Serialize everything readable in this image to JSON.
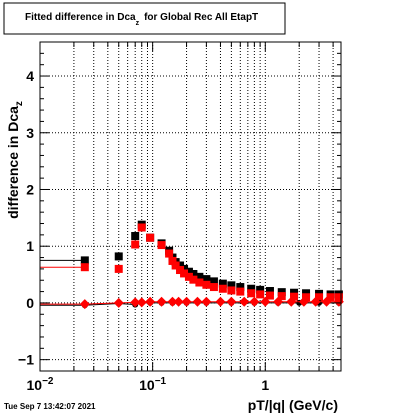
{
  "title": {
    "prefix": "Fitted difference in Dca",
    "subscript": "z",
    "suffix": "for Global Rec All EtapT"
  },
  "timestamp": "Tue Sep  7 13:42:07 2021",
  "colors": {
    "series_black": "#000000",
    "series_red": "#ff0000",
    "grid": "#000000",
    "frame": "#000000"
  },
  "chart_data": {
    "type": "scatter",
    "title": "Fitted difference in Dca_z for Global Rec All EtapT",
    "xlabel": "pT/|q| (GeV/c)",
    "ylabel": {
      "text": "difference in Dca",
      "subscript": "z"
    },
    "xscale": "log",
    "xlim": [
      0.01,
      4.7
    ],
    "ylim": [
      -1.2,
      4.6
    ],
    "grid": true,
    "x_ticks": [
      {
        "value": 0.01,
        "base": "10",
        "exp": "−2"
      },
      {
        "value": 0.1,
        "base": "10",
        "exp": "−1"
      },
      {
        "value": 1,
        "base": "1",
        "exp": ""
      }
    ],
    "y_ticks": [
      -1,
      0,
      1,
      2,
      3,
      4
    ],
    "series": [
      {
        "marker": "square",
        "color": "black",
        "points": [
          {
            "x": 0.025,
            "y": 0.75
          },
          {
            "x": 0.05,
            "y": 0.82
          },
          {
            "x": 0.07,
            "y": 1.18
          },
          {
            "x": 0.08,
            "y": 1.38
          },
          {
            "x": 0.095,
            "y": 1.15
          },
          {
            "x": 0.12,
            "y": 1.05
          },
          {
            "x": 0.14,
            "y": 0.92
          },
          {
            "x": 0.15,
            "y": 0.8
          },
          {
            "x": 0.16,
            "y": 0.72
          },
          {
            "x": 0.175,
            "y": 0.66
          },
          {
            "x": 0.19,
            "y": 0.6
          },
          {
            "x": 0.21,
            "y": 0.55
          },
          {
            "x": 0.23,
            "y": 0.51
          },
          {
            "x": 0.26,
            "y": 0.46
          },
          {
            "x": 0.3,
            "y": 0.42
          },
          {
            "x": 0.35,
            "y": 0.38
          },
          {
            "x": 0.42,
            "y": 0.34
          },
          {
            "x": 0.5,
            "y": 0.31
          },
          {
            "x": 0.6,
            "y": 0.28
          },
          {
            "x": 0.75,
            "y": 0.25
          },
          {
            "x": 0.9,
            "y": 0.23
          },
          {
            "x": 1.1,
            "y": 0.21
          },
          {
            "x": 1.4,
            "y": 0.19
          },
          {
            "x": 1.8,
            "y": 0.18
          },
          {
            "x": 2.3,
            "y": 0.17
          },
          {
            "x": 3.0,
            "y": 0.16
          },
          {
            "x": 3.8,
            "y": 0.15
          },
          {
            "x": 4.5,
            "y": 0.15
          }
        ]
      },
      {
        "marker": "square",
        "color": "red",
        "points": [
          {
            "x": 0.025,
            "y": 0.63
          },
          {
            "x": 0.05,
            "y": 0.6
          },
          {
            "x": 0.07,
            "y": 1.03
          },
          {
            "x": 0.08,
            "y": 1.33
          },
          {
            "x": 0.095,
            "y": 1.15
          },
          {
            "x": 0.12,
            "y": 1.02
          },
          {
            "x": 0.14,
            "y": 0.87
          },
          {
            "x": 0.15,
            "y": 0.74
          },
          {
            "x": 0.16,
            "y": 0.66
          },
          {
            "x": 0.175,
            "y": 0.58
          },
          {
            "x": 0.19,
            "y": 0.52
          },
          {
            "x": 0.21,
            "y": 0.46
          },
          {
            "x": 0.23,
            "y": 0.41
          },
          {
            "x": 0.26,
            "y": 0.36
          },
          {
            "x": 0.3,
            "y": 0.32
          },
          {
            "x": 0.35,
            "y": 0.28
          },
          {
            "x": 0.42,
            "y": 0.25
          },
          {
            "x": 0.5,
            "y": 0.22
          },
          {
            "x": 0.6,
            "y": 0.2
          },
          {
            "x": 0.75,
            "y": 0.17
          },
          {
            "x": 0.9,
            "y": 0.15
          },
          {
            "x": 1.1,
            "y": 0.13
          },
          {
            "x": 1.4,
            "y": 0.12
          },
          {
            "x": 1.8,
            "y": 0.11
          },
          {
            "x": 2.3,
            "y": 0.1
          },
          {
            "x": 3.0,
            "y": 0.1
          },
          {
            "x": 3.8,
            "y": 0.1
          },
          {
            "x": 4.5,
            "y": 0.1
          }
        ]
      },
      {
        "marker": "circle",
        "color": "black",
        "points": [
          {
            "x": 0.025,
            "y": -0.04
          },
          {
            "x": 0.05,
            "y": -0.01
          },
          {
            "x": 0.07,
            "y": -0.03
          },
          {
            "x": 0.08,
            "y": 0.0
          },
          {
            "x": 0.095,
            "y": 0.0
          },
          {
            "x": 0.12,
            "y": 0.0
          },
          {
            "x": 0.15,
            "y": 0.0
          },
          {
            "x": 0.2,
            "y": 0.0
          },
          {
            "x": 0.3,
            "y": 0.0
          },
          {
            "x": 0.5,
            "y": 0.0
          },
          {
            "x": 0.8,
            "y": 0.0
          },
          {
            "x": 1.3,
            "y": 0.0
          },
          {
            "x": 2.0,
            "y": 0.0
          },
          {
            "x": 3.0,
            "y": 0.0
          },
          {
            "x": 4.5,
            "y": 0.0
          }
        ]
      },
      {
        "marker": "diamond",
        "color": "red",
        "points": [
          {
            "x": 0.025,
            "y": -0.02
          },
          {
            "x": 0.05,
            "y": 0.0
          },
          {
            "x": 0.07,
            "y": 0.01
          },
          {
            "x": 0.08,
            "y": 0.01
          },
          {
            "x": 0.095,
            "y": 0.02
          },
          {
            "x": 0.12,
            "y": 0.02
          },
          {
            "x": 0.15,
            "y": 0.02
          },
          {
            "x": 0.17,
            "y": 0.02
          },
          {
            "x": 0.2,
            "y": 0.02
          },
          {
            "x": 0.25,
            "y": 0.02
          },
          {
            "x": 0.3,
            "y": 0.02
          },
          {
            "x": 0.4,
            "y": 0.02
          },
          {
            "x": 0.5,
            "y": 0.02
          },
          {
            "x": 0.65,
            "y": 0.02
          },
          {
            "x": 0.8,
            "y": 0.02
          },
          {
            "x": 1.0,
            "y": 0.02
          },
          {
            "x": 1.3,
            "y": 0.02
          },
          {
            "x": 1.7,
            "y": 0.02
          },
          {
            "x": 2.2,
            "y": 0.02
          },
          {
            "x": 2.8,
            "y": 0.02
          },
          {
            "x": 3.5,
            "y": 0.02
          },
          {
            "x": 4.5,
            "y": 0.02
          }
        ]
      }
    ],
    "reference_lines": [
      {
        "color": "black",
        "x_range": [
          0.01,
          0.025
        ],
        "y": 0.75
      },
      {
        "color": "red",
        "x_range": [
          0.01,
          0.025
        ],
        "y": 0.63
      },
      {
        "color": "black",
        "x_range": [
          0.01,
          0.025
        ],
        "y": -0.04
      },
      {
        "color": "red",
        "x_range": [
          0.01,
          0.025
        ],
        "y": -0.02
      }
    ]
  }
}
